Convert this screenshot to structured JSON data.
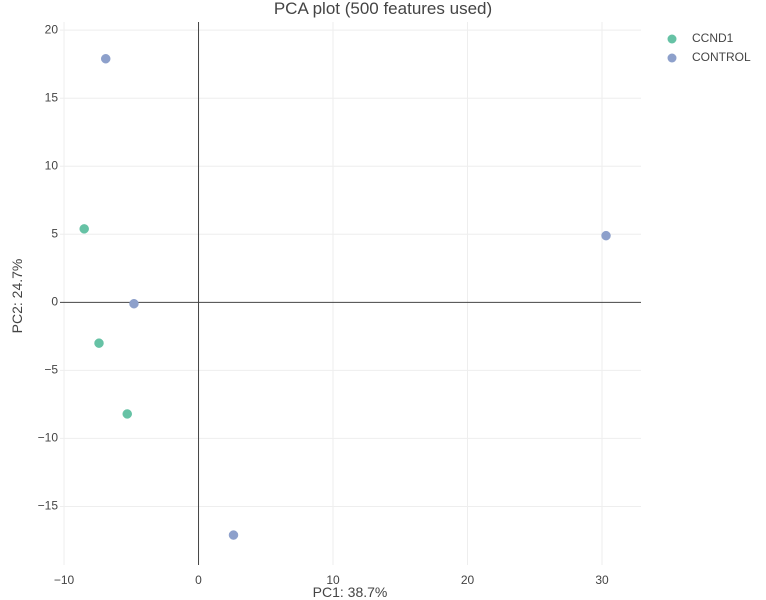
{
  "chart_data": {
    "type": "scatter",
    "title": "PCA plot (500 features used)",
    "xlabel": "PC1: 38.7%",
    "ylabel": "PC2: 24.7%",
    "xlim": [
      -10.3,
      32.9
    ],
    "ylim": [
      -19.3,
      20.6
    ],
    "xticks": [
      -10,
      0,
      10,
      20,
      30
    ],
    "xtick_labels": [
      "−10",
      "0",
      "10",
      "20",
      "30"
    ],
    "yticks": [
      -15,
      -10,
      -5,
      0,
      5,
      10,
      15,
      20
    ],
    "ytick_labels": [
      "−15",
      "−10",
      "−5",
      "0",
      "5",
      "10",
      "15",
      "20"
    ],
    "grid": true,
    "legend_position": "top-right",
    "series": [
      {
        "name": "CCND1",
        "color": "#66c2a5",
        "points": [
          {
            "x": -8.5,
            "y": 5.4
          },
          {
            "x": -7.4,
            "y": -3.0
          },
          {
            "x": -5.3,
            "y": -8.2
          }
        ]
      },
      {
        "name": "CONTROL",
        "color": "#8da0cb",
        "points": [
          {
            "x": -6.9,
            "y": 17.9
          },
          {
            "x": -4.8,
            "y": -0.1
          },
          {
            "x": 30.3,
            "y": 4.9
          },
          {
            "x": 2.6,
            "y": -17.1
          }
        ]
      }
    ]
  }
}
